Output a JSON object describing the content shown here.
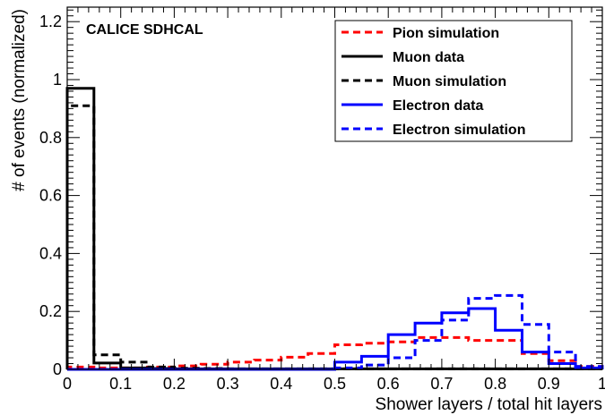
{
  "chart_data": {
    "type": "line",
    "histogram": true,
    "annotation": "CALICE SDHCAL",
    "xlabel": "Shower layers / total hit layers",
    "ylabel": "# of events (normalized)",
    "xlim": [
      0,
      1
    ],
    "ylim": [
      0,
      1.25
    ],
    "grid": false,
    "legend_position": "top-right",
    "bin_edges": [
      0,
      0.05,
      0.1,
      0.15,
      0.2,
      0.25,
      0.3,
      0.35,
      0.4,
      0.45,
      0.5,
      0.55,
      0.6,
      0.65,
      0.7,
      0.75,
      0.8,
      0.85,
      0.9,
      0.95,
      1.0
    ],
    "x_ticks": [
      {
        "value": 0,
        "label": "0"
      },
      {
        "value": 0.1,
        "label": "0.1"
      },
      {
        "value": 0.2,
        "label": "0.2"
      },
      {
        "value": 0.3,
        "label": "0.3"
      },
      {
        "value": 0.4,
        "label": "0.4"
      },
      {
        "value": 0.5,
        "label": "0.5"
      },
      {
        "value": 0.6,
        "label": "0.6"
      },
      {
        "value": 0.7,
        "label": "0.7"
      },
      {
        "value": 0.8,
        "label": "0.8"
      },
      {
        "value": 0.9,
        "label": "0.9"
      },
      {
        "value": 1.0,
        "label": "1"
      }
    ],
    "y_ticks": [
      {
        "value": 0,
        "label": "0"
      },
      {
        "value": 0.2,
        "label": "0.2"
      },
      {
        "value": 0.4,
        "label": "0.4"
      },
      {
        "value": 0.6,
        "label": "0.6"
      },
      {
        "value": 0.8,
        "label": "0.8"
      },
      {
        "value": 1.0,
        "label": "1"
      },
      {
        "value": 1.2,
        "label": "1.2"
      }
    ],
    "series": [
      {
        "name": "Pion simulation",
        "color": "#ff0000",
        "dashed": true,
        "values": [
          0.008,
          0.005,
          0.005,
          0.008,
          0.012,
          0.018,
          0.025,
          0.032,
          0.042,
          0.055,
          0.085,
          0.09,
          0.095,
          0.11,
          0.11,
          0.1,
          0.1,
          0.055,
          0.03,
          0.01
        ]
      },
      {
        "name": "Muon data",
        "color": "#000000",
        "dashed": false,
        "values": [
          0.97,
          0.022,
          0.005,
          0.003,
          0.002,
          0.002,
          0.002,
          0.002,
          0.002,
          0.002,
          0.002,
          0.002,
          0.002,
          0.002,
          0.002,
          0.002,
          0.002,
          0.002,
          0.002,
          0.002
        ]
      },
      {
        "name": "Muon simulation",
        "color": "#000000",
        "dashed": true,
        "values": [
          0.91,
          0.05,
          0.025,
          0.008,
          0.004,
          0.003,
          0.002,
          0.002,
          0.002,
          0.002,
          0.002,
          0.002,
          0.002,
          0.002,
          0.002,
          0.002,
          0.002,
          0.002,
          0.002,
          0.002
        ]
      },
      {
        "name": "Electron data",
        "color": "#0000ff",
        "dashed": false,
        "values": [
          0,
          0,
          0,
          0,
          0,
          0,
          0,
          0,
          0,
          0,
          0.025,
          0.045,
          0.12,
          0.16,
          0.195,
          0.21,
          0.135,
          0.06,
          0.02,
          0.005
        ]
      },
      {
        "name": "Electron simulation",
        "color": "#0000ff",
        "dashed": true,
        "values": [
          0,
          0,
          0,
          0,
          0,
          0,
          0,
          0,
          0,
          0,
          0.005,
          0.015,
          0.04,
          0.1,
          0.17,
          0.245,
          0.255,
          0.155,
          0.06,
          0.01
        ]
      }
    ]
  }
}
